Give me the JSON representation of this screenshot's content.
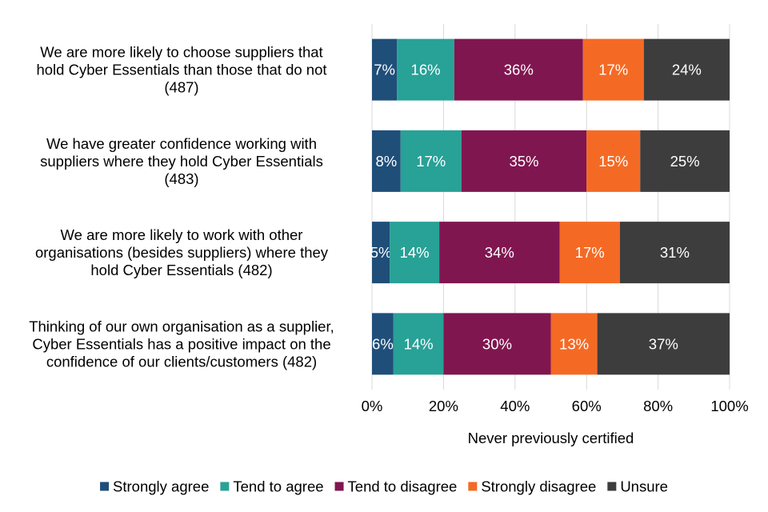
{
  "chart_data": {
    "type": "bar",
    "orientation": "horizontal",
    "stacked": true,
    "percent": true,
    "categories": [
      [
        "We are more likely to choose suppliers that",
        "hold Cyber Essentials than those that do not",
        "(487)"
      ],
      [
        "We have greater confidence working with",
        "suppliers where they hold Cyber Essentials",
        "(483)"
      ],
      [
        "We are more likely to work with other",
        "organisations (besides suppliers) where they",
        "hold Cyber Essentials (482)"
      ],
      [
        "Thinking of our own organisation as a supplier,",
        "Cyber Essentials has a positive impact on the",
        "confidence of our clients/customers (482)"
      ]
    ],
    "series": [
      {
        "name": "Strongly agree",
        "color": "#1f4e79",
        "values": [
          7,
          8,
          5,
          6
        ],
        "labels": [
          "7%",
          "8%",
          "5%",
          "6%"
        ]
      },
      {
        "name": "Tend to agree",
        "color": "#28a197",
        "values": [
          16,
          17,
          14,
          14
        ],
        "labels": [
          "16%",
          "17%",
          "14%",
          "14%"
        ]
      },
      {
        "name": "Tend to disagree",
        "color": "#801650",
        "values": [
          36,
          35,
          34,
          30
        ],
        "labels": [
          "36%",
          "35%",
          "34%",
          "30%"
        ]
      },
      {
        "name": "Strongly disagree",
        "color": "#f46a25",
        "values": [
          17,
          15,
          17,
          13
        ],
        "labels": [
          "17%",
          "15%",
          "17%",
          "13%"
        ]
      },
      {
        "name": "Unsure",
        "color": "#3d3d3d",
        "values": [
          24,
          25,
          31,
          37
        ],
        "labels": [
          "24%",
          "25%",
          "31%",
          "37%"
        ]
      }
    ],
    "xlabel": "Never previously certified",
    "ylabel": "",
    "xlim": [
      0,
      100
    ],
    "xticks": [
      "0%",
      "20%",
      "40%",
      "60%",
      "80%",
      "100%"
    ],
    "grid": true,
    "legend": "bottom"
  }
}
